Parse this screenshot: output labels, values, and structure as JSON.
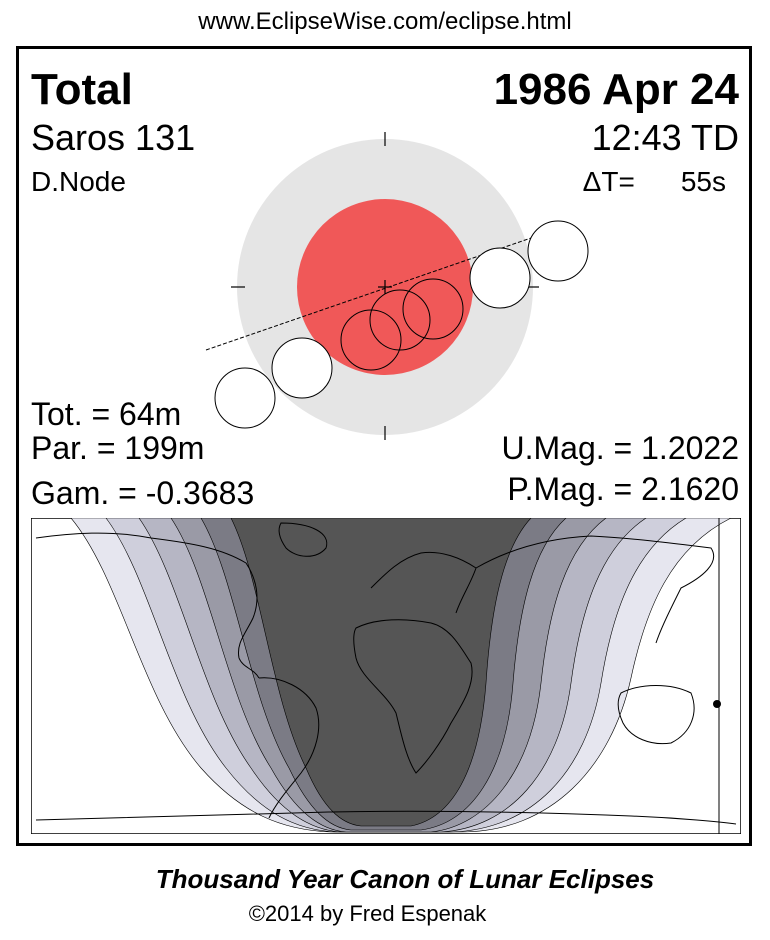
{
  "header": {
    "url": "www.EclipseWise.com/eclipse.html"
  },
  "eclipse": {
    "type": "Total",
    "date": "1986 Apr 24",
    "saros": "Saros 131",
    "time_td": "12:43 TD",
    "node": "D.Node",
    "delta_t_label": "ΔT=",
    "delta_t_value": "55s"
  },
  "stats": {
    "tot": "Tot. =  64m",
    "par": "Par. = 199m",
    "gam": "Gam. = -0.3683",
    "umag": "U.Mag. = 1.2022",
    "pmag": "P.Mag. = 2.1620"
  },
  "footer": {
    "title": "Thousand Year Canon of Lunar Eclipses",
    "credit": "©2014 by Fred Espenak"
  },
  "colors": {
    "penumbra": "#e5e5e5",
    "umbra": "#f05858",
    "totality_zone": "#555555",
    "zone_1": "#7b7b85",
    "zone_2": "#9a9aa6",
    "zone_3": "#b6b6c4",
    "zone_4": "#cfcfdc",
    "zone_5": "#e6e6ef"
  }
}
